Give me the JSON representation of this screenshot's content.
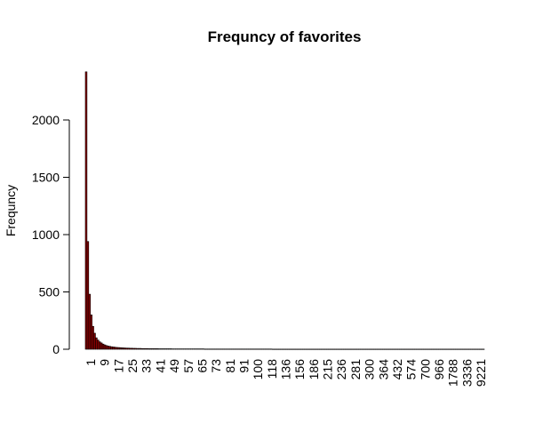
{
  "chart_data": {
    "type": "bar",
    "title": "Frequncy of favorites",
    "xlabel": "",
    "ylabel": "Frequncy",
    "ylim": [
      0,
      2450
    ],
    "yticks": [
      0,
      500,
      1000,
      1500,
      2000
    ],
    "x_tick_labels": [
      "1",
      "9",
      "17",
      "25",
      "33",
      "41",
      "49",
      "57",
      "65",
      "73",
      "81",
      "91",
      "100",
      "118",
      "136",
      "156",
      "186",
      "215",
      "236",
      "281",
      "300",
      "364",
      "432",
      "574",
      "700",
      "966",
      "1788",
      "3336",
      "9221"
    ],
    "values": [
      2420,
      940,
      480,
      300,
      200,
      140,
      100,
      80,
      65,
      55,
      45,
      38,
      32,
      28,
      25,
      22,
      20,
      18,
      16,
      15,
      14,
      13,
      12,
      11,
      10,
      10,
      9,
      9,
      8,
      8,
      7,
      7,
      7,
      6,
      6,
      6,
      6,
      5,
      5,
      5,
      5,
      5,
      5,
      4,
      4,
      4,
      4,
      4,
      4,
      4,
      4,
      3,
      3,
      3,
      3,
      3,
      3,
      3,
      3,
      3,
      3,
      3,
      3,
      3,
      3,
      3,
      3,
      3,
      3,
      3,
      2,
      2,
      2,
      2,
      2,
      2,
      2,
      2,
      2,
      2,
      2,
      2,
      2,
      2,
      2,
      2,
      2,
      2,
      2,
      2,
      2,
      2,
      2,
      2,
      2,
      2,
      2,
      2,
      2,
      2,
      2,
      2,
      2,
      2,
      2,
      2,
      2,
      2,
      2,
      2,
      1,
      1,
      1,
      1,
      1,
      1,
      1,
      1,
      1,
      1,
      1,
      1,
      1,
      1,
      1,
      1,
      1,
      1,
      1,
      1,
      1,
      1,
      1,
      1,
      1,
      1,
      1,
      1,
      1,
      1,
      1,
      1,
      1,
      1,
      1,
      1,
      1,
      1,
      1,
      1,
      1,
      1,
      1,
      1,
      1,
      1,
      1,
      1,
      1,
      1,
      1,
      1,
      1,
      1,
      1,
      1,
      1,
      1,
      1,
      1,
      1,
      1,
      1,
      1,
      1,
      1,
      1,
      1,
      1,
      1,
      1,
      1,
      1,
      1,
      1,
      1,
      1,
      1,
      1,
      1,
      1,
      1,
      1,
      1,
      1,
      1,
      1,
      1,
      1,
      1,
      1,
      1,
      1,
      1,
      1,
      1,
      1,
      1,
      1,
      1,
      1,
      1,
      1,
      1,
      1,
      1,
      1,
      1,
      1,
      1,
      1,
      1,
      1,
      1,
      1,
      1,
      1,
      1,
      1,
      1,
      1,
      1,
      1,
      1,
      1
    ],
    "bar_color": "#8b0000",
    "bar_border": "#000000",
    "grid": false,
    "legend": false
  }
}
